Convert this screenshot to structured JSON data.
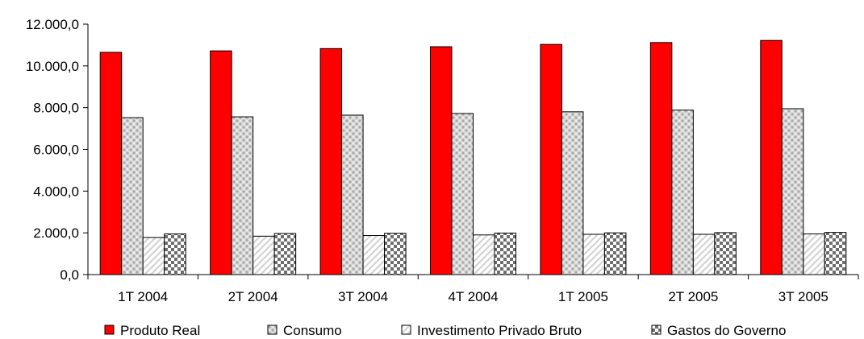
{
  "chart_data": {
    "type": "bar",
    "categories": [
      "1T 2004",
      "2T 2004",
      "3T 2004",
      "4T 2004",
      "1T 2005",
      "2T 2005",
      "3T 2005"
    ],
    "series": [
      {
        "name": "Produto Real",
        "values": [
          10650,
          10720,
          10830,
          10920,
          11030,
          11120,
          11220
        ],
        "color": "#ff0000",
        "pattern": "solid"
      },
      {
        "name": "Consumo",
        "values": [
          7520,
          7560,
          7640,
          7720,
          7800,
          7880,
          7950
        ],
        "color": "#c8c8c8",
        "pattern": "dots"
      },
      {
        "name": "Investimento Privado Bruto",
        "values": [
          1780,
          1840,
          1870,
          1900,
          1930,
          1930,
          1950
        ],
        "color": "#ffffff",
        "pattern": "diagonal"
      },
      {
        "name": "Gastos do Governo",
        "values": [
          1950,
          1970,
          1980,
          1990,
          2000,
          2010,
          2020
        ],
        "color": "#808080",
        "pattern": "checker"
      }
    ],
    "y_ticks": [
      "0,0",
      "2.000,0",
      "4.000,0",
      "6.000,0",
      "8.000,0",
      "10.000,0",
      "12.000,0"
    ],
    "ylim": [
      0,
      12000
    ],
    "grid": false,
    "legend_position": "bottom",
    "title": "",
    "xlabel": "",
    "ylabel": ""
  }
}
